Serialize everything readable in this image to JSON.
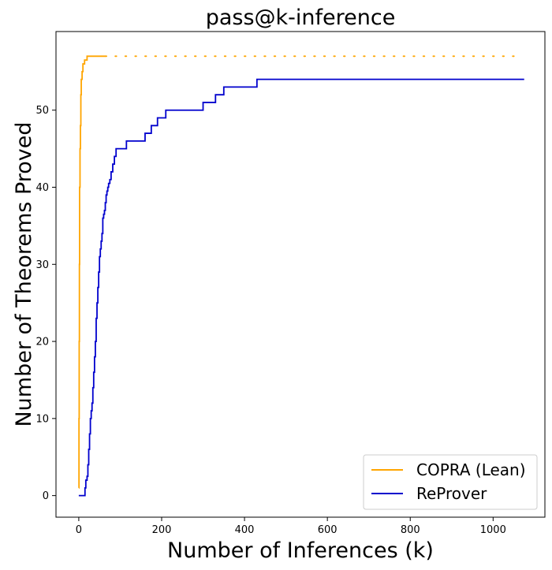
{
  "chart_data": {
    "type": "line",
    "title": "pass@k-inference",
    "xlabel": "Number of Inferences (k)",
    "ylabel": "Number of Theorems Proved",
    "xlim": [
      -55,
      1125
    ],
    "ylim": [
      -2.8,
      60.2
    ],
    "xticks": [
      0,
      200,
      400,
      600,
      800,
      1000
    ],
    "yticks": [
      0,
      10,
      20,
      30,
      40,
      50
    ],
    "grid": false,
    "legend_position": "lower-right",
    "series": [
      {
        "name": "COPRA (Lean)",
        "color": "#ffa500",
        "step": true,
        "x": [
          0,
          0.5,
          1,
          1.5,
          2,
          3,
          4,
          5,
          6,
          8,
          10,
          14,
          20,
          64
        ],
        "y": [
          1,
          10,
          20,
          30,
          40,
          45,
          48,
          52,
          54,
          55,
          56,
          56.5,
          57,
          57
        ],
        "extension": {
          "style": "dotted",
          "x": [
            64,
            1065
          ],
          "y": [
            57,
            57
          ]
        }
      },
      {
        "name": "ReProver",
        "color": "#0000cd",
        "step": true,
        "x": [
          0,
          15,
          17,
          20,
          22,
          24,
          26,
          28,
          30,
          32,
          34,
          36,
          38,
          40,
          42,
          44,
          46,
          48,
          50,
          52,
          54,
          56,
          58,
          60,
          62,
          64,
          66,
          68,
          70,
          72,
          75,
          78,
          82,
          86,
          90,
          95,
          100,
          105,
          115,
          125,
          135,
          160,
          168,
          175,
          182,
          190,
          200,
          210,
          220,
          300,
          305,
          330,
          335,
          350,
          355,
          430,
          435,
          1075
        ],
        "y": [
          0,
          1,
          2,
          2.5,
          4,
          6,
          8,
          10,
          11,
          12,
          14,
          16,
          18,
          20,
          23,
          25,
          27,
          29,
          31,
          32,
          33,
          34,
          36,
          36.5,
          37,
          38,
          39,
          39.5,
          40,
          40.5,
          41,
          42,
          43,
          44,
          45,
          45,
          45,
          45,
          46,
          46,
          46,
          47,
          47,
          48,
          48,
          49,
          49,
          50,
          50,
          51,
          51,
          52,
          52,
          53,
          53,
          54,
          54,
          54
        ]
      }
    ]
  }
}
